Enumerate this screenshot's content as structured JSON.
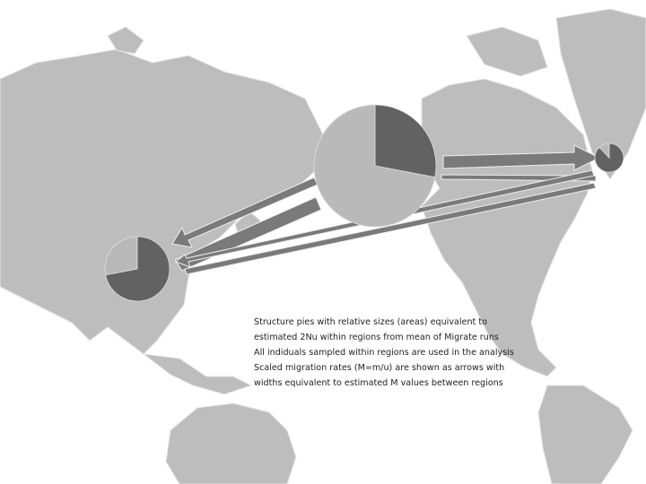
{
  "pies": [
    {
      "values": [
        28,
        72
      ],
      "colors": [
        "#626262",
        "#b9b9b9"
      ]
    },
    {
      "values": [
        72,
        28
      ],
      "colors": [
        "#626262",
        "#b9b9b9"
      ]
    },
    {
      "values": [
        88,
        12
      ],
      "colors": [
        "#626262",
        "#b9b9b9"
      ]
    }
  ],
  "caption": [
    "Structure pies with relative sizes (areas) equivalent to",
    "estimated 2Nu within regions from mean of Migrate runs",
    "All indiduals sampled within regions are used in the analysis",
    "Scaled migration rates (M=m/u) are shown as arrows with",
    "widths equivalent to estimated M values between regions"
  ]
}
